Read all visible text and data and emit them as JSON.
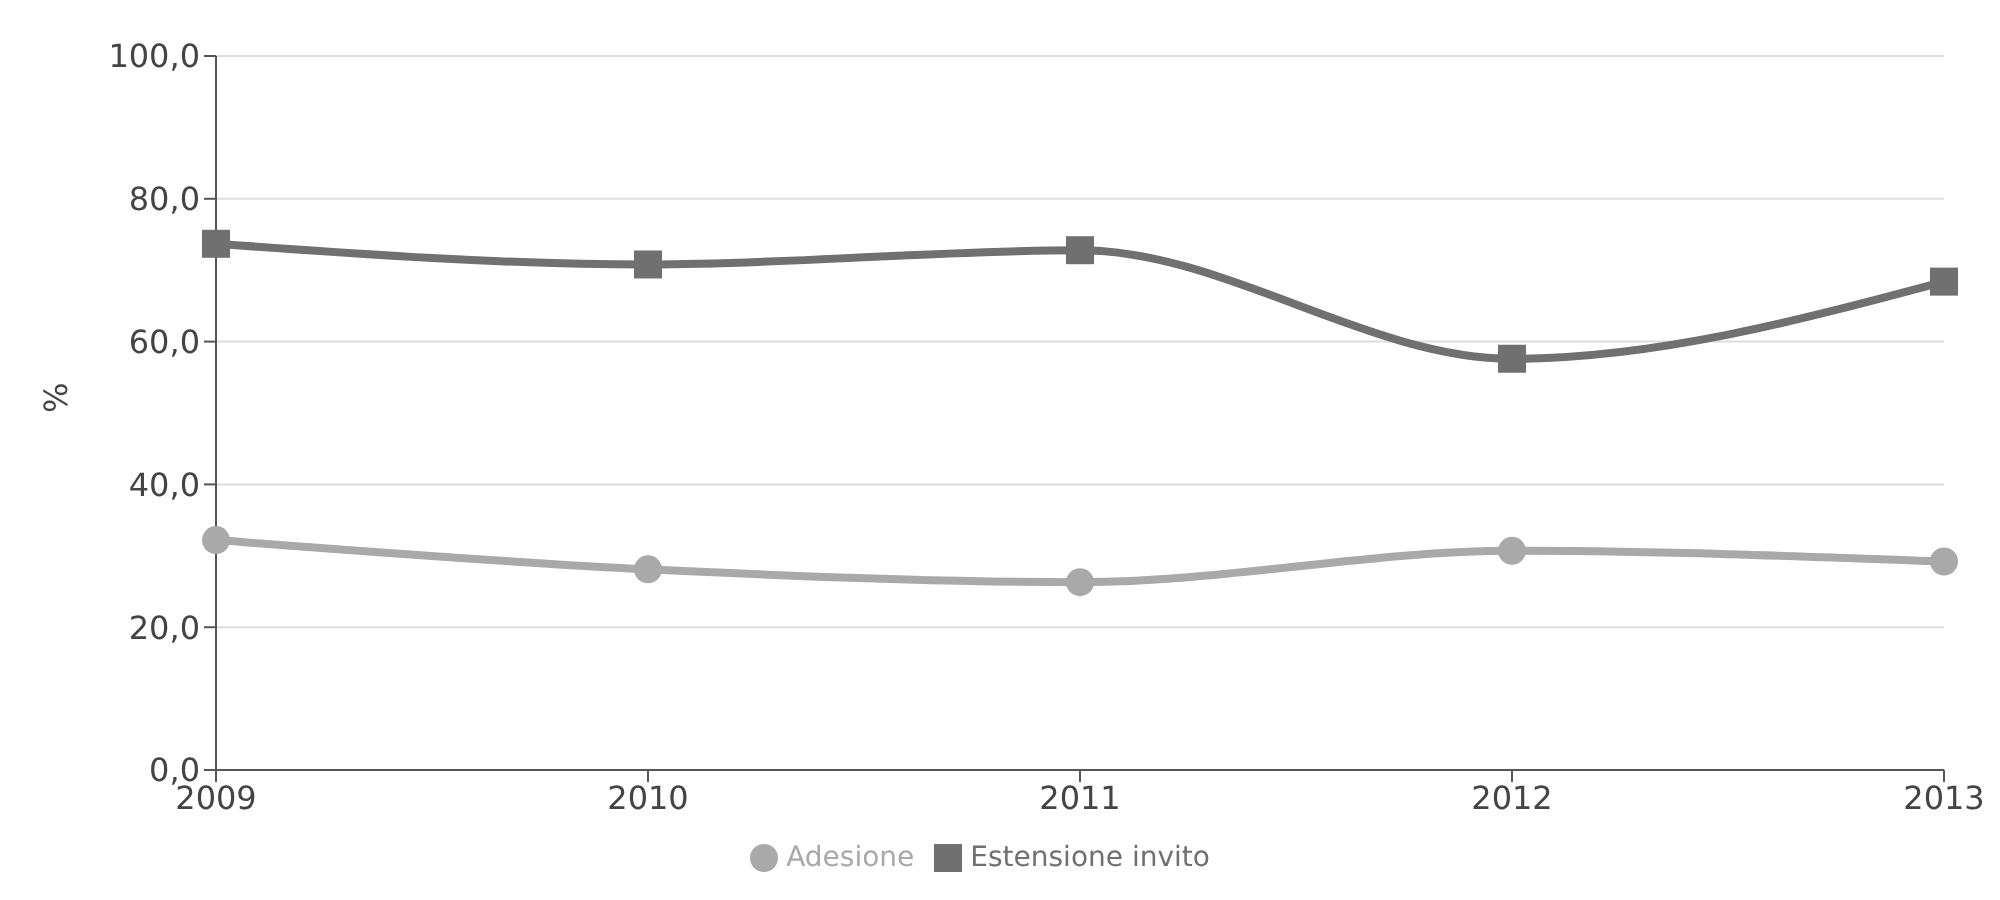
{
  "chart_data": {
    "type": "line",
    "ylabel": "%",
    "categories": [
      "2009",
      "2010",
      "2011",
      "2012",
      "2013"
    ],
    "series": [
      {
        "name": "Estensione invito",
        "color": "#707070",
        "marker": "square",
        "values": [
          73.7,
          70.8,
          72.8,
          57.6,
          68.4
        ]
      },
      {
        "name": "Adesione",
        "color": "#a9a9a9",
        "marker": "circle",
        "values": [
          32.2,
          28.1,
          26.3,
          30.7,
          29.2
        ]
      }
    ],
    "ylim": [
      0,
      100
    ],
    "yticks": [
      {
        "value": 0,
        "label": "0,0"
      },
      {
        "value": 20,
        "label": "20,0"
      },
      {
        "value": 40,
        "label": "40,0"
      },
      {
        "value": 60,
        "label": "60,0"
      },
      {
        "value": 80,
        "label": "80,0"
      },
      {
        "value": 100,
        "label": "100,0"
      }
    ],
    "grid": "y",
    "legend": "bottom"
  }
}
